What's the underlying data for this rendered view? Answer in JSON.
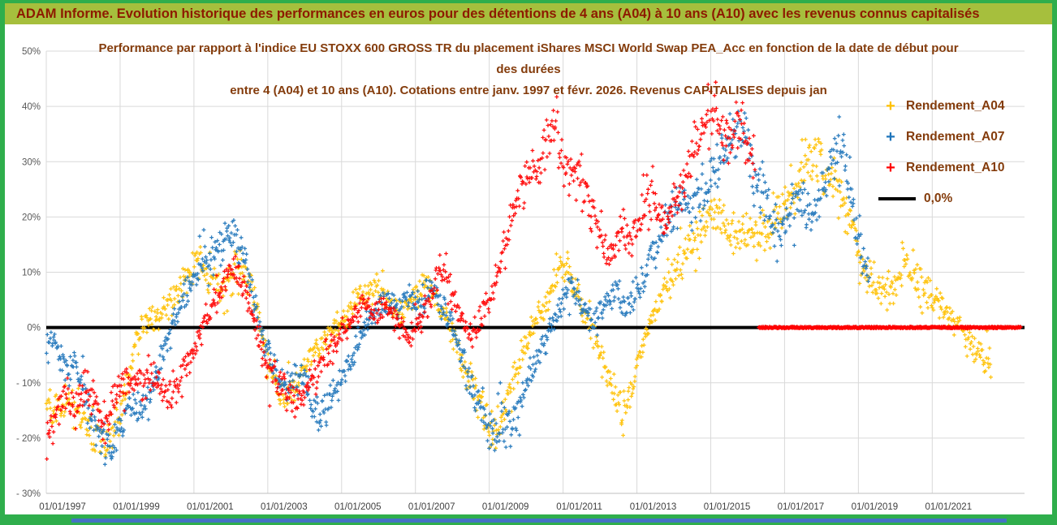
{
  "header": {
    "title": "ADAM Informe. Evolution historique des performances en euros pour des détentions de 4 ans (A04) à 10 ans (A10) avec les revenus connus capitalisés"
  },
  "colors": {
    "frame_green": "#2fae4c",
    "banner_green": "#a6bf3d",
    "banner_text": "#8d1a00",
    "title_text": "#843c0c",
    "gridline": "#d9d9d9",
    "axis_label": "#595959",
    "a04": "#FFC000",
    "a07": "#1F75BB",
    "a10": "#FF0000",
    "zero_line": "#000000",
    "bottom_strip_blue": "#4472c4"
  },
  "legend": {
    "items": [
      {
        "label": "Rendement_A04",
        "marker": "+",
        "color": "#FFC000"
      },
      {
        "label": "Rendement_A07",
        "marker": "+",
        "color": "#1F75BB"
      },
      {
        "label": "Rendement_A10",
        "marker": "+",
        "color": "#FF0000"
      },
      {
        "label": "0,0%",
        "marker": "line",
        "color": "#000000"
      }
    ]
  },
  "chart_data": {
    "type": "scatter",
    "marker": "+",
    "grid": true,
    "legend_position": "right",
    "title_lines": [
      "Performance par rapport à l'indice EU STOXX 600 GROSS TR  du placement iShares MSCI World Swap PEA_Acc en fonction de la date de début pour",
      "des durées",
      "entre 4 (A04) et 10 ans (A10).  Cotations entre janv. 1997 et févr. 2026. Revenus CAPITALISES depuis jan"
    ],
    "x_axis": {
      "min": 1997,
      "max": 2023.5,
      "tick_years": [
        1997,
        1999,
        2001,
        2003,
        2005,
        2007,
        2009,
        2011,
        2013,
        2015,
        2017,
        2019,
        2021
      ],
      "tick_labels": [
        "01/01/1997",
        "01/01/1999",
        "01/01/2001",
        "01/01/2003",
        "01/01/2005",
        "01/01/2007",
        "01/01/2009",
        "01/01/2011",
        "01/01/2013",
        "01/01/2015",
        "01/01/2017",
        "01/01/2019",
        "01/01/2021"
      ]
    },
    "y_axis": {
      "min": -30,
      "max": 50,
      "tick_values": [
        50,
        40,
        30,
        20,
        10,
        0,
        -10,
        -20,
        -30
      ],
      "tick_labels": [
        "50%",
        "40%",
        "30%",
        "20%",
        "10%",
        "0%",
        "- 10%",
        "- 20%",
        "- 30%"
      ]
    },
    "zero_line": {
      "value": 0,
      "label": "0,0%",
      "color": "#000000"
    },
    "series": [
      {
        "name": "Rendement_A04",
        "color": "#FFC000",
        "anchors": [
          [
            1997.0,
            -14
          ],
          [
            1997.3,
            -16
          ],
          [
            1997.6,
            -13
          ],
          [
            1997.9,
            -16
          ],
          [
            1998.2,
            -18
          ],
          [
            1998.5,
            -20
          ],
          [
            1998.8,
            -19
          ],
          [
            1999.1,
            -12
          ],
          [
            1999.4,
            -3
          ],
          [
            1999.7,
            2
          ],
          [
            2000.0,
            1
          ],
          [
            2000.3,
            4
          ],
          [
            2000.6,
            7
          ],
          [
            2000.9,
            10
          ],
          [
            2001.1,
            12
          ],
          [
            2001.4,
            8
          ],
          [
            2001.7,
            7
          ],
          [
            2002.0,
            9
          ],
          [
            2002.2,
            12
          ],
          [
            2002.5,
            8
          ],
          [
            2002.8,
            1
          ],
          [
            2003.0,
            -7
          ],
          [
            2003.3,
            -12
          ],
          [
            2003.6,
            -13
          ],
          [
            2003.9,
            -8
          ],
          [
            2004.2,
            -5
          ],
          [
            2004.5,
            -3
          ],
          [
            2004.8,
            0
          ],
          [
            2005.1,
            2
          ],
          [
            2005.4,
            5
          ],
          [
            2005.7,
            6
          ],
          [
            2006.0,
            7
          ],
          [
            2006.3,
            5
          ],
          [
            2006.6,
            3
          ],
          [
            2006.9,
            5
          ],
          [
            2007.2,
            7
          ],
          [
            2007.5,
            6
          ],
          [
            2007.8,
            2
          ],
          [
            2008.1,
            -3
          ],
          [
            2008.4,
            -8
          ],
          [
            2008.7,
            -13
          ],
          [
            2009.0,
            -18
          ],
          [
            2009.2,
            -20
          ],
          [
            2009.4,
            -14
          ],
          [
            2009.7,
            -8
          ],
          [
            2010.0,
            -3
          ],
          [
            2010.3,
            2
          ],
          [
            2010.6,
            6
          ],
          [
            2010.9,
            10
          ],
          [
            2011.1,
            11
          ],
          [
            2011.4,
            6
          ],
          [
            2011.7,
            1
          ],
          [
            2012.0,
            -5
          ],
          [
            2012.3,
            -10
          ],
          [
            2012.6,
            -15
          ],
          [
            2012.9,
            -11
          ],
          [
            2013.1,
            -4
          ],
          [
            2013.4,
            2
          ],
          [
            2013.7,
            6
          ],
          [
            2014.0,
            10
          ],
          [
            2014.3,
            13
          ],
          [
            2014.6,
            16
          ],
          [
            2014.9,
            19
          ],
          [
            2015.1,
            21
          ],
          [
            2015.4,
            18
          ],
          [
            2015.7,
            16
          ],
          [
            2016.0,
            18
          ],
          [
            2016.3,
            17
          ],
          [
            2016.6,
            19
          ],
          [
            2016.9,
            21
          ],
          [
            2017.2,
            24
          ],
          [
            2017.5,
            28
          ],
          [
            2017.8,
            31
          ],
          [
            2018.0,
            29
          ],
          [
            2018.3,
            26
          ],
          [
            2018.6,
            22
          ],
          [
            2018.9,
            17
          ],
          [
            2019.1,
            10
          ],
          [
            2019.4,
            9
          ],
          [
            2019.7,
            6
          ],
          [
            2020.0,
            8
          ],
          [
            2020.3,
            12
          ],
          [
            2020.6,
            9
          ],
          [
            2020.9,
            6
          ],
          [
            2021.2,
            4
          ],
          [
            2021.5,
            2
          ],
          [
            2021.8,
            0
          ],
          [
            2022.1,
            -3
          ],
          [
            2022.4,
            -6
          ],
          [
            2022.6,
            -6
          ]
        ]
      },
      {
        "name": "Rendement_A07",
        "color": "#1F75BB",
        "anchors": [
          [
            1997.0,
            -4
          ],
          [
            1997.2,
            -2
          ],
          [
            1997.4,
            -6
          ],
          [
            1997.6,
            -9
          ],
          [
            1997.8,
            -7
          ],
          [
            1998.0,
            -12
          ],
          [
            1998.3,
            -17
          ],
          [
            1998.6,
            -21
          ],
          [
            1998.8,
            -23
          ],
          [
            1999.0,
            -18
          ],
          [
            1999.2,
            -14
          ],
          [
            1999.5,
            -16
          ],
          [
            1999.8,
            -12
          ],
          [
            2000.1,
            -6
          ],
          [
            2000.4,
            0
          ],
          [
            2000.7,
            5
          ],
          [
            2001.0,
            9
          ],
          [
            2001.3,
            12
          ],
          [
            2001.6,
            14
          ],
          [
            2001.9,
            16
          ],
          [
            2002.1,
            18
          ],
          [
            2002.3,
            14
          ],
          [
            2002.5,
            9
          ],
          [
            2002.7,
            3
          ],
          [
            2002.9,
            -3
          ],
          [
            2003.2,
            -8
          ],
          [
            2003.5,
            -11
          ],
          [
            2003.8,
            -9
          ],
          [
            2004.1,
            -12
          ],
          [
            2004.4,
            -16
          ],
          [
            2004.7,
            -13
          ],
          [
            2005.0,
            -9
          ],
          [
            2005.3,
            -5
          ],
          [
            2005.6,
            -1
          ],
          [
            2005.9,
            2
          ],
          [
            2006.2,
            5
          ],
          [
            2006.5,
            3
          ],
          [
            2006.8,
            6
          ],
          [
            2007.1,
            5
          ],
          [
            2007.4,
            7
          ],
          [
            2007.7,
            4
          ],
          [
            2008.0,
            0
          ],
          [
            2008.3,
            -6
          ],
          [
            2008.6,
            -12
          ],
          [
            2008.9,
            -17
          ],
          [
            2009.1,
            -21
          ],
          [
            2009.3,
            -16
          ],
          [
            2009.6,
            -19
          ],
          [
            2009.9,
            -13
          ],
          [
            2010.1,
            -8
          ],
          [
            2010.4,
            -4
          ],
          [
            2010.7,
            0
          ],
          [
            2011.0,
            4
          ],
          [
            2011.2,
            8
          ],
          [
            2011.5,
            5
          ],
          [
            2011.8,
            1
          ],
          [
            2012.1,
            4
          ],
          [
            2012.4,
            7
          ],
          [
            2012.7,
            3
          ],
          [
            2013.0,
            7
          ],
          [
            2013.3,
            11
          ],
          [
            2013.6,
            16
          ],
          [
            2013.9,
            20
          ],
          [
            2014.2,
            24
          ],
          [
            2014.5,
            21
          ],
          [
            2014.8,
            25
          ],
          [
            2015.1,
            28
          ],
          [
            2015.4,
            32
          ],
          [
            2015.7,
            36
          ],
          [
            2015.9,
            38
          ],
          [
            2016.1,
            30
          ],
          [
            2016.3,
            25
          ],
          [
            2016.6,
            20
          ],
          [
            2016.9,
            17
          ],
          [
            2017.2,
            21
          ],
          [
            2017.5,
            23
          ],
          [
            2017.8,
            19
          ],
          [
            2018.0,
            24
          ],
          [
            2018.3,
            30
          ],
          [
            2018.5,
            33
          ],
          [
            2018.7,
            28
          ],
          [
            2018.9,
            20
          ],
          [
            2019.1,
            13
          ],
          [
            2019.3,
            9
          ]
        ]
      },
      {
        "name": "Rendement_A10",
        "color": "#FF0000",
        "anchors": [
          [
            1997.0,
            -23
          ],
          [
            1997.2,
            -18
          ],
          [
            1997.4,
            -14
          ],
          [
            1997.6,
            -12
          ],
          [
            1997.8,
            -15
          ],
          [
            1998.0,
            -11
          ],
          [
            1998.3,
            -14
          ],
          [
            1998.6,
            -17
          ],
          [
            1998.9,
            -12
          ],
          [
            1999.2,
            -9
          ],
          [
            1999.5,
            -11
          ],
          [
            1999.8,
            -8
          ],
          [
            2000.1,
            -10
          ],
          [
            2000.4,
            -12
          ],
          [
            2000.7,
            -8
          ],
          [
            2001.0,
            -4
          ],
          [
            2001.3,
            1
          ],
          [
            2001.6,
            6
          ],
          [
            2001.9,
            9
          ],
          [
            2002.1,
            11
          ],
          [
            2002.3,
            8
          ],
          [
            2002.5,
            4
          ],
          [
            2002.7,
            -1
          ],
          [
            2002.9,
            -5
          ],
          [
            2003.2,
            -9
          ],
          [
            2003.5,
            -12
          ],
          [
            2003.8,
            -14
          ],
          [
            2004.1,
            -10
          ],
          [
            2004.4,
            -7
          ],
          [
            2004.7,
            -4
          ],
          [
            2005.0,
            -1
          ],
          [
            2005.3,
            2
          ],
          [
            2005.6,
            4
          ],
          [
            2005.9,
            2
          ],
          [
            2006.2,
            4
          ],
          [
            2006.5,
            1
          ],
          [
            2006.8,
            -2
          ],
          [
            2007.1,
            1
          ],
          [
            2007.4,
            5
          ],
          [
            2007.6,
            9
          ],
          [
            2007.8,
            11
          ],
          [
            2008.0,
            6
          ],
          [
            2008.2,
            2
          ],
          [
            2008.5,
            -2
          ],
          [
            2008.8,
            2
          ],
          [
            2009.0,
            5
          ],
          [
            2009.2,
            9
          ],
          [
            2009.4,
            14
          ],
          [
            2009.6,
            20
          ],
          [
            2009.8,
            25
          ],
          [
            2010.0,
            28
          ],
          [
            2010.2,
            26
          ],
          [
            2010.4,
            30
          ],
          [
            2010.6,
            33
          ],
          [
            2010.8,
            36
          ],
          [
            2011.0,
            30
          ],
          [
            2011.2,
            27
          ],
          [
            2011.4,
            29
          ],
          [
            2011.6,
            24
          ],
          [
            2011.8,
            20
          ],
          [
            2012.0,
            17
          ],
          [
            2012.2,
            13
          ],
          [
            2012.4,
            16
          ],
          [
            2012.6,
            18
          ],
          [
            2012.8,
            15
          ],
          [
            2013.0,
            19
          ],
          [
            2013.2,
            22
          ],
          [
            2013.4,
            24
          ],
          [
            2013.6,
            21
          ],
          [
            2013.8,
            19
          ],
          [
            2014.0,
            22
          ],
          [
            2014.2,
            25
          ],
          [
            2014.4,
            29
          ],
          [
            2014.6,
            33
          ],
          [
            2014.8,
            37
          ],
          [
            2015.0,
            40
          ],
          [
            2015.2,
            38
          ],
          [
            2015.4,
            34
          ],
          [
            2015.6,
            36
          ],
          [
            2015.8,
            38
          ],
          [
            2016.0,
            34
          ],
          [
            2016.2,
            29
          ]
        ],
        "flat_zero_extension": {
          "start": 2016.3,
          "end": 2023.4,
          "value": 0
        }
      }
    ]
  }
}
